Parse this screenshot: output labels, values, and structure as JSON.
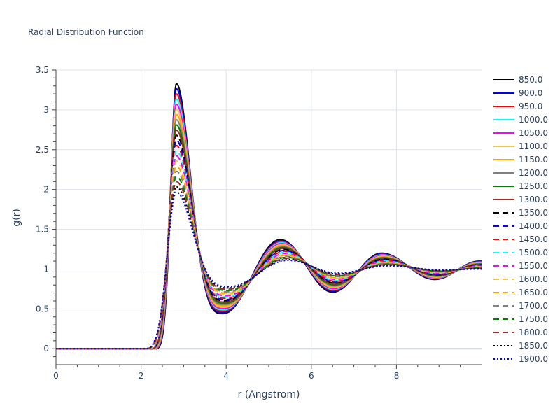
{
  "chart_data": {
    "type": "line",
    "title": "Radial Distribution Function",
    "xlabel": "r (Angstrom)",
    "ylabel": "g(r)",
    "xlim": [
      0,
      10
    ],
    "ylim": [
      -0.2,
      3.5
    ],
    "xticks": [
      0,
      2,
      4,
      6,
      8
    ],
    "xtick_labels": [
      "0",
      "2",
      "4",
      "6",
      "8"
    ],
    "yticks": [
      0,
      0.5,
      1,
      1.5,
      2,
      2.5,
      3,
      3.5
    ],
    "ytick_labels": [
      "0",
      "0.5",
      "1",
      "1.5",
      "2",
      "2.5",
      "3",
      "3.5"
    ],
    "grid": true,
    "legend_position": "right",
    "curve_model": {
      "onset": [
        2.38,
        2.12
      ],
      "peak1_r": [
        2.83,
        2.83
      ],
      "peak1_g": [
        3.33,
        1.97
      ],
      "min1_r": [
        3.93,
        4.07
      ],
      "min1_g": [
        0.44,
        0.78
      ],
      "peak2_r": [
        5.27,
        5.45
      ],
      "peak2_g": [
        1.37,
        1.11
      ],
      "min2_r": [
        6.5,
        6.62
      ],
      "min2_g": [
        0.71,
        0.95
      ],
      "peak3_r": [
        7.65,
        7.78
      ],
      "peak3_g": [
        1.2,
        1.04
      ],
      "min3_r": [
        8.9,
        9.05
      ],
      "min3_g": [
        0.87,
        0.99
      ],
      "end_r": 9.95,
      "end_g": [
        1.1,
        1.0
      ]
    },
    "series": [
      {
        "name": "850.0",
        "color": "#000000",
        "dash": "solid"
      },
      {
        "name": "900.0",
        "color": "#0000ff",
        "dash": "solid"
      },
      {
        "name": "950.0",
        "color": "#ff0000",
        "dash": "solid"
      },
      {
        "name": "1000.0",
        "color": "#00ffff",
        "dash": "solid"
      },
      {
        "name": "1050.0",
        "color": "#ff00ff",
        "dash": "solid"
      },
      {
        "name": "1100.0",
        "color": "#f5c242",
        "dash": "solid"
      },
      {
        "name": "1150.0",
        "color": "#ffa500",
        "dash": "solid"
      },
      {
        "name": "1200.0",
        "color": "#808080",
        "dash": "solid"
      },
      {
        "name": "1250.0",
        "color": "#008000",
        "dash": "solid"
      },
      {
        "name": "1300.0",
        "color": "#a52a2a",
        "dash": "solid"
      },
      {
        "name": "1350.0",
        "color": "#000000",
        "dash": "dash"
      },
      {
        "name": "1400.0",
        "color": "#0000ff",
        "dash": "dash"
      },
      {
        "name": "1450.0",
        "color": "#ff0000",
        "dash": "dash"
      },
      {
        "name": "1500.0",
        "color": "#00ffff",
        "dash": "dash"
      },
      {
        "name": "1550.0",
        "color": "#ff00ff",
        "dash": "dash"
      },
      {
        "name": "1600.0",
        "color": "#f5c242",
        "dash": "dash"
      },
      {
        "name": "1650.0",
        "color": "#ffa500",
        "dash": "dash"
      },
      {
        "name": "1700.0",
        "color": "#808080",
        "dash": "dash"
      },
      {
        "name": "1750.0",
        "color": "#008000",
        "dash": "dash"
      },
      {
        "name": "1800.0",
        "color": "#a52a2a",
        "dash": "dash"
      },
      {
        "name": "1850.0",
        "color": "#000000",
        "dash": "dot"
      },
      {
        "name": "1900.0",
        "color": "#0000ff",
        "dash": "dot"
      }
    ]
  }
}
